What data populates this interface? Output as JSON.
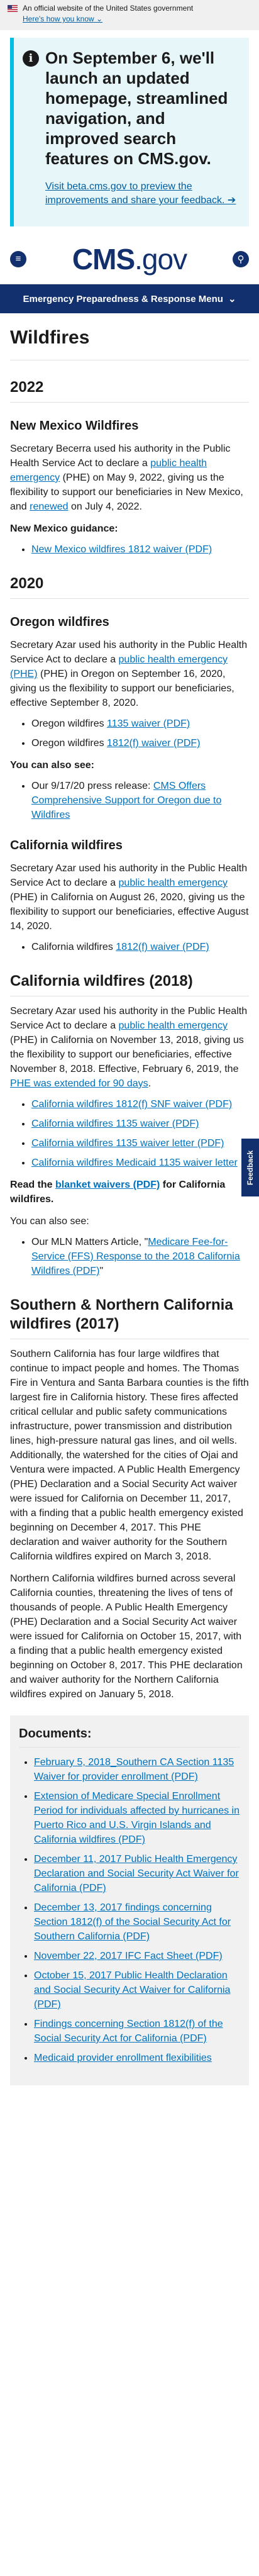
{
  "gov_banner": {
    "text": "An official website of the United States government",
    "link": "Here's how you know",
    "chevron": "⌄"
  },
  "alert": {
    "icon": "i",
    "heading": "On September 6, we'll launch an updated homepage, streamlined navigation, and improved search features on CMS.gov.",
    "link": "Visit beta.cms.gov to preview the improvements and share your feedback. ➔"
  },
  "header": {
    "logo_main": "CMS",
    "logo_gov": ".gov",
    "menu_icon": "≡",
    "search_icon": "⚲"
  },
  "nav": {
    "label": "Emergency Preparedness & Response Menu",
    "chevron": "⌄"
  },
  "feedback": "Feedback",
  "page": {
    "title": "Wildfires",
    "y2022": "2022",
    "nm_heading": "New Mexico Wildfires",
    "nm_p1": "Secretary Becerra used his authority in the Public Health Service Act to declare a ",
    "nm_p1_link": "public health emergency",
    "nm_p1_b": " (PHE) on May 9, 2022, giving us the flexibility to support our beneficiaries in New Mexico, and ",
    "nm_p1_link2": "renewed",
    "nm_p1_c": " on July 4, 2022.",
    "nm_guidance": "New Mexico guidance:",
    "nm_items": [
      "New Mexico wildfires 1812 waiver (PDF)"
    ],
    "y2020": "2020",
    "or_heading": "Oregon wildfires",
    "or_p1": "Secretary Azar used his authority in the Public Health Service Act to declare a ",
    "or_p1_link": "public health emergency (PHE)",
    "or_p1_b": " (PHE) in Oregon on September 16, 2020, giving us the flexibility to support our beneficiaries, effective September 8, 2020.",
    "or_items_prefix": [
      "Oregon wildfires ",
      "Oregon wildfires "
    ],
    "or_items_link": [
      "1135 waiver (PDF)",
      "1812(f) waiver (PDF)"
    ],
    "or_see": "You can also see:",
    "or_see_prefix": "Our 9/17/20 press release: ",
    "or_see_link": "CMS Offers Comprehensive Support for Oregon due to Wildfires",
    "ca_heading": "California wildfires",
    "ca_p1": "Secretary Azar used his authority in the Public Health Service Act to declare a ",
    "ca_p1_link": "public health emergency",
    "ca_p1_b": " (PHE) in California on August 26, 2020, giving us the flexibility to support our beneficiaries, effective August 14, 2020.",
    "ca_item_prefix": "California wildfires ",
    "ca_item_link": "1812(f) waiver (PDF)",
    "ca18_heading": "California wildfires (2018)",
    "ca18_p1": "Secretary Azar used his authority in the Public Health Service Act to declare a ",
    "ca18_p1_link": "public health emergency",
    "ca18_p1_b": " (PHE) in California on November 13, 2018, giving us the flexibility to support our beneficiaries, effective November 8, 2018. Effective, February 6, 2019, the ",
    "ca18_p1_link2": "PHE was extended for 90 days",
    "ca18_p1_c": ".",
    "ca18_items": [
      "California wildfires 1812(f) SNF waiver (PDF)",
      "California wildfires 1135 waiver (PDF)",
      "California wildfires 1135 waiver letter (PDF)",
      "California wildfires Medicaid 1135 waiver letter"
    ],
    "ca18_read_a": "Read the ",
    "ca18_read_link": "blanket waivers (PDF)",
    "ca18_read_b": " for California wildfires.",
    "ca18_see": "You can also see:",
    "ca18_see_prefix": "Our MLN Matters Article, \"",
    "ca18_see_link": "Medicare Fee-for-Service (FFS) Response to the 2018 California Wildfires (PDF)",
    "ca18_see_suffix": "\"",
    "scn_heading": "Southern & Northern California wildfires (2017)",
    "scn_p1": "Southern California has four large wildfires that continue to impact people and homes. The Thomas Fire in Ventura and Santa Barbara counties is the fifth largest fire in California history. These fires affected critical cellular and public safety communications infrastructure, power transmission and distribution lines, high-pressure natural gas lines, and oil wells. Additionally, the watershed for the cities of Ojai and Ventura were impacted. A Public Health Emergency (PHE) Declaration and a Social Security Act waiver were issued for California on December 11, 2017, with a finding that a public health emergency existed beginning on December 4, 2017. This PHE declaration and waiver authority for the Southern California wildfires expired on March 3, 2018.",
    "scn_p2": "Northern California wildfires burned across several California counties, threatening the lives of tens of thousands of people. A Public Health Emergency (PHE) Declaration and a Social Security Act waiver were issued for California on October 15, 2017, with a finding that a public health emergency existed beginning on October 8, 2017. This PHE declaration and waiver authority for the Northern California wildfires expired on January 5, 2018.",
    "docs_heading": "Documents:",
    "docs_items": [
      "February 5, 2018_Southern CA Section 1135 Waiver for provider enrollment (PDF)",
      "Extension of Medicare Special Enrollment Period for individuals affected by hurricanes in Puerto Rico and U.S. Virgin Islands and California wildfires (PDF)",
      "December 11, 2017 Public Health Emergency Declaration and Social Security Act Waiver for California (PDF)",
      "December 13, 2017 findings concerning Section 1812(f) of the Social Security Act for Southern California (PDF)",
      "November 22, 2017 IFC Fact Sheet (PDF)",
      "October 15, 2017 Public Health Declaration and Social Security Act Waiver for California (PDF)",
      "Findings concerning Section 1812(f) of the Social Security Act for California (PDF)",
      "Medicaid provider enrollment flexibilities"
    ]
  }
}
